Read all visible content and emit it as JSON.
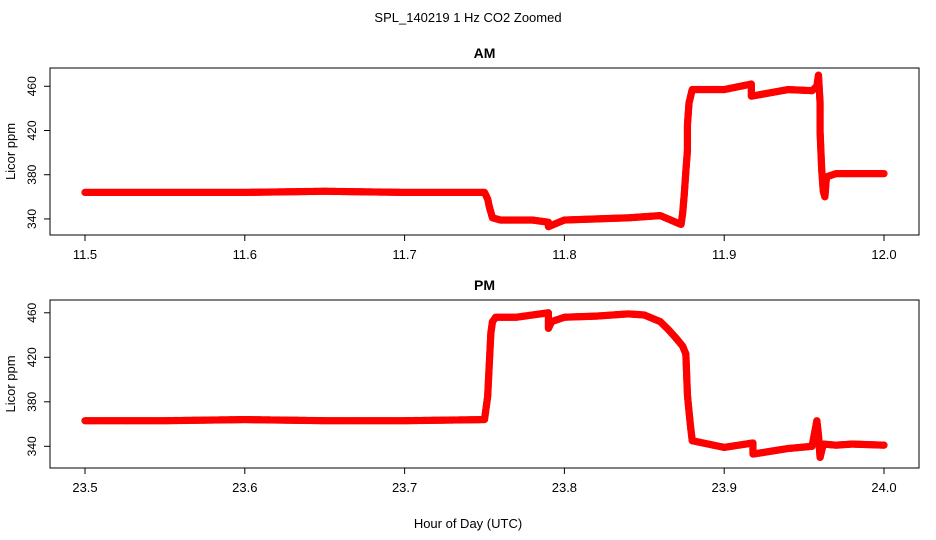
{
  "main_title": "SPL_140219 1 Hz CO2 Zoomed",
  "xlabel": "Hour of Day (UTC)",
  "colors": {
    "points": "#ff0000",
    "axes": "#000000",
    "background": "#ffffff"
  },
  "chart_data": [
    {
      "type": "scatter",
      "title": "AM",
      "ylabel": "Licor ppm",
      "xlim": [
        11.5,
        12.0
      ],
      "ylim": [
        330,
        472
      ],
      "xticks": [
        "11.5",
        "11.6",
        "11.7",
        "11.8",
        "11.9",
        "12.0"
      ],
      "yticks": [
        "340",
        "380",
        "420",
        "460"
      ],
      "grid": false,
      "series": [
        {
          "marker": "open-circle",
          "x": [
            11.5,
            11.55,
            11.6,
            11.65,
            11.7,
            11.75,
            11.752,
            11.753,
            11.754,
            11.755,
            11.76,
            11.78,
            11.79,
            11.79,
            11.8,
            11.82,
            11.84,
            11.86,
            11.873,
            11.874,
            11.875,
            11.876,
            11.877,
            11.877,
            11.878,
            11.88,
            11.9,
            11.917,
            11.917,
            11.94,
            11.955,
            11.958,
            11.959,
            11.96,
            11.96,
            11.961,
            11.962,
            11.963,
            11.964,
            11.97,
            11.98,
            12.0
          ],
          "y": [
            364,
            364,
            364,
            365,
            364,
            364,
            358,
            351,
            346,
            341,
            339,
            339,
            337,
            333,
            339,
            340,
            341,
            343,
            335,
            345,
            362,
            383,
            402,
            425,
            445,
            457,
            457,
            462,
            451,
            457,
            456,
            460,
            470,
            445,
            419,
            385,
            365,
            360,
            378,
            381,
            381,
            381
          ]
        }
      ]
    },
    {
      "type": "scatter",
      "title": "PM",
      "ylabel": "Licor ppm",
      "xlim": [
        23.5,
        24.0
      ],
      "ylim": [
        325,
        467
      ],
      "xticks": [
        "23.5",
        "23.6",
        "23.7",
        "23.8",
        "23.9",
        "24.0"
      ],
      "yticks": [
        "340",
        "380",
        "420",
        "460"
      ],
      "grid": false,
      "series": [
        {
          "marker": "open-circle",
          "x": [
            23.5,
            23.55,
            23.6,
            23.65,
            23.7,
            23.75,
            23.752,
            23.753,
            23.754,
            23.755,
            23.757,
            23.77,
            23.79,
            23.79,
            23.792,
            23.8,
            23.82,
            23.84,
            23.85,
            23.86,
            23.865,
            23.87,
            23.874,
            23.876,
            23.877,
            23.878,
            23.879,
            23.88,
            23.9,
            23.918,
            23.918,
            23.94,
            23.955,
            23.958,
            23.959,
            23.96,
            23.962,
            23.97,
            23.98,
            24.0
          ],
          "y": [
            363,
            363,
            364,
            363,
            363,
            364,
            385,
            414,
            442,
            452,
            456,
            456,
            460,
            446,
            452,
            456,
            457,
            459,
            458,
            452,
            445,
            437,
            430,
            423,
            386,
            371,
            357,
            345,
            339,
            343,
            333,
            338,
            340,
            363,
            350,
            330,
            342,
            341,
            342,
            341
          ]
        }
      ]
    }
  ]
}
